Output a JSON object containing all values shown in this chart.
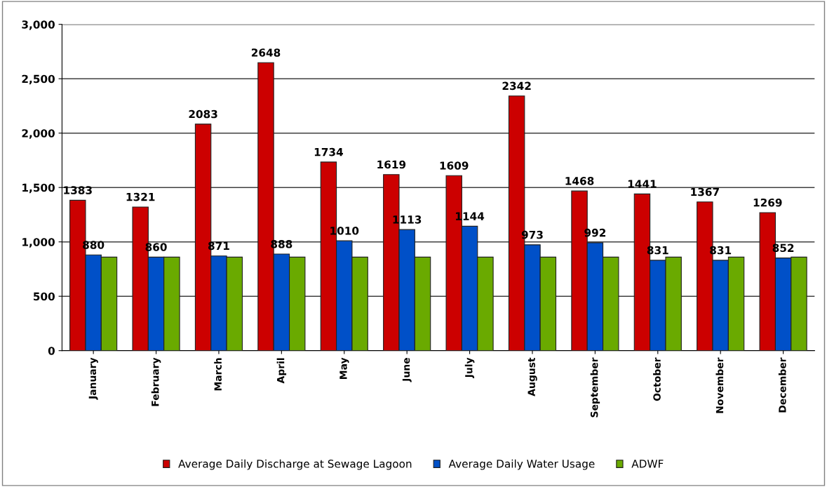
{
  "chart_data": {
    "type": "bar",
    "categories": [
      "January",
      "February",
      "March",
      "April",
      "May",
      "June",
      "July",
      "August",
      "September",
      "October",
      "November",
      "December"
    ],
    "series": [
      {
        "name": "Average Daily Discharge at Sewage Lagoon",
        "color": "#cc0000",
        "values": [
          1383,
          1321,
          2083,
          2648,
          1734,
          1619,
          1609,
          2342,
          1468,
          1441,
          1367,
          1269
        ],
        "value_labels": [
          "1383",
          "1321",
          "2083",
          "2648",
          "1734",
          "1619",
          "1609",
          "2342",
          "1468",
          "1441",
          "1367",
          "1269"
        ]
      },
      {
        "name": "Average Daily Water Usage",
        "color": "#0050c8",
        "values": [
          880,
          860,
          871,
          888,
          1010,
          1113,
          1144,
          973,
          992,
          831,
          831,
          852
        ],
        "value_labels": [
          "880",
          "860",
          "871",
          "888",
          "1010",
          "1113",
          "1144",
          "973",
          "992",
          "831",
          "831",
          "852"
        ]
      },
      {
        "name": "ADWF",
        "color": "#6aaa00",
        "values": [
          860,
          860,
          860,
          860,
          860,
          860,
          860,
          860,
          860,
          860,
          860,
          860
        ]
      }
    ],
    "ylim": [
      0,
      3000
    ],
    "yticks": [
      0,
      {
        "value": 500,
        "label": "500"
      },
      {
        "value": 1000,
        "label": "1,000"
      },
      {
        "value": 1500,
        "label": "1,500"
      },
      {
        "value": 2000,
        "label": "2,000"
      },
      {
        "value": 2500,
        "label": "2,500"
      },
      {
        "value": 3000,
        "label": "3,000"
      }
    ],
    "grid": "y",
    "legend": "bottom"
  }
}
